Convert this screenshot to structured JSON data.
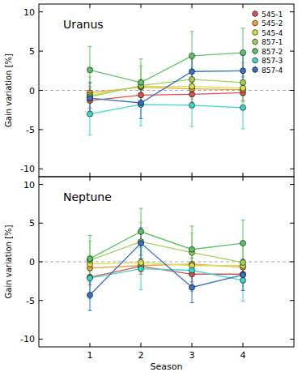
{
  "chart_data": [
    {
      "type": "line",
      "title": "Uranus",
      "y_label": "Gain variation [%]",
      "x": [
        1,
        2,
        3,
        4
      ],
      "xlim": [
        0,
        5
      ],
      "xticks": [
        1,
        2,
        3,
        4
      ],
      "ylim": [
        -11,
        11
      ],
      "yticks": [
        -10,
        -5,
        0,
        5,
        10
      ],
      "tick_labels": "y",
      "legend": "upper right",
      "marker": "circle",
      "reference_line": 0,
      "series": [
        {
          "name": "545-1",
          "color": "#d9534f",
          "values": [
            -1.3,
            -0.6,
            -0.5,
            -0.3
          ],
          "errors": [
            1.0,
            1.0,
            1.0,
            1.0
          ]
        },
        {
          "name": "545-2",
          "color": "#e8a33d",
          "values": [
            -0.3,
            0.4,
            0.2,
            0.1
          ],
          "errors": [
            0.8,
            0.8,
            0.8,
            0.8
          ]
        },
        {
          "name": "545-4",
          "color": "#d6e04a",
          "values": [
            -0.6,
            0.5,
            0.5,
            0.3
          ],
          "errors": [
            0.9,
            0.9,
            0.9,
            0.9
          ]
        },
        {
          "name": "857-1",
          "color": "#9ed25a",
          "values": [
            -0.8,
            0.6,
            1.4,
            1.0
          ],
          "errors": [
            2.5,
            2.5,
            2.5,
            2.5
          ]
        },
        {
          "name": "857-2",
          "color": "#5dc36a",
          "values": [
            2.6,
            1.0,
            4.4,
            4.8
          ],
          "errors": [
            3.0,
            3.0,
            3.1,
            3.1
          ]
        },
        {
          "name": "857-3",
          "color": "#3fd6c8",
          "values": [
            -3.0,
            -1.8,
            -1.9,
            -2.2
          ],
          "errors": [
            2.7,
            2.7,
            2.7,
            2.7
          ]
        },
        {
          "name": "857-4",
          "color": "#3a6fc4",
          "values": [
            -1.0,
            -1.6,
            2.4,
            2.5
          ],
          "errors": [
            2.0,
            2.0,
            2.0,
            2.0
          ]
        }
      ]
    },
    {
      "type": "line",
      "title": "Neptune",
      "y_label": "Gain variation [%]",
      "x_label": "Season",
      "x": [
        1,
        2,
        3,
        4
      ],
      "xlim": [
        0,
        5
      ],
      "xticks": [
        1,
        2,
        3,
        4
      ],
      "ylim": [
        -11,
        11
      ],
      "yticks": [
        -10,
        -5,
        0,
        5,
        10
      ],
      "marker": "circle",
      "reference_line": 0,
      "series": [
        {
          "color": "#d9534f",
          "values": [
            -2.0,
            -0.6,
            -1.6,
            -1.6
          ],
          "errors": [
            1.0,
            1.0,
            1.0,
            1.0
          ]
        },
        {
          "color": "#e8a33d",
          "values": [
            -0.8,
            -0.5,
            -0.3,
            -0.7
          ],
          "errors": [
            0.8,
            0.8,
            0.8,
            0.8
          ]
        },
        {
          "color": "#d6e04a",
          "values": [
            -0.3,
            -0.1,
            -0.5,
            -0.5
          ],
          "errors": [
            0.9,
            0.9,
            0.9,
            0.9
          ]
        },
        {
          "color": "#9ed25a",
          "values": [
            0.2,
            2.6,
            1.2,
            -0.1
          ],
          "errors": [
            2.5,
            2.5,
            2.5,
            2.5
          ]
        },
        {
          "color": "#5dc36a",
          "values": [
            0.4,
            3.9,
            1.6,
            2.4
          ],
          "errors": [
            3.0,
            3.0,
            3.0,
            3.0
          ]
        },
        {
          "color": "#3fd6c8",
          "values": [
            -2.1,
            -0.9,
            -1.1,
            -2.4
          ],
          "errors": [
            2.7,
            2.7,
            2.7,
            2.7
          ]
        },
        {
          "color": "#3a6fc4",
          "values": [
            -4.3,
            2.4,
            -3.3,
            -1.7
          ],
          "errors": [
            2.0,
            2.0,
            2.0,
            2.0
          ]
        }
      ]
    }
  ]
}
